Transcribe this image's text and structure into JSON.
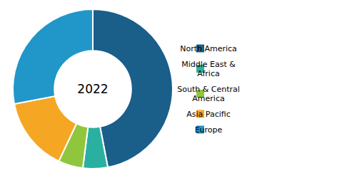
{
  "chart_data": {
    "type": "pie",
    "categories": [
      "North America",
      "Middle East &\nAfrica",
      "South & Central\nAmerica",
      "Asia Pacific",
      "Europe"
    ],
    "values": [
      47,
      5,
      5,
      15,
      28
    ],
    "colors": [
      "#1a5e8a",
      "#2ab0a0",
      "#8fc63e",
      "#f5a623",
      "#2196c9"
    ],
    "annotations": [
      "2022"
    ],
    "legend": "right"
  }
}
